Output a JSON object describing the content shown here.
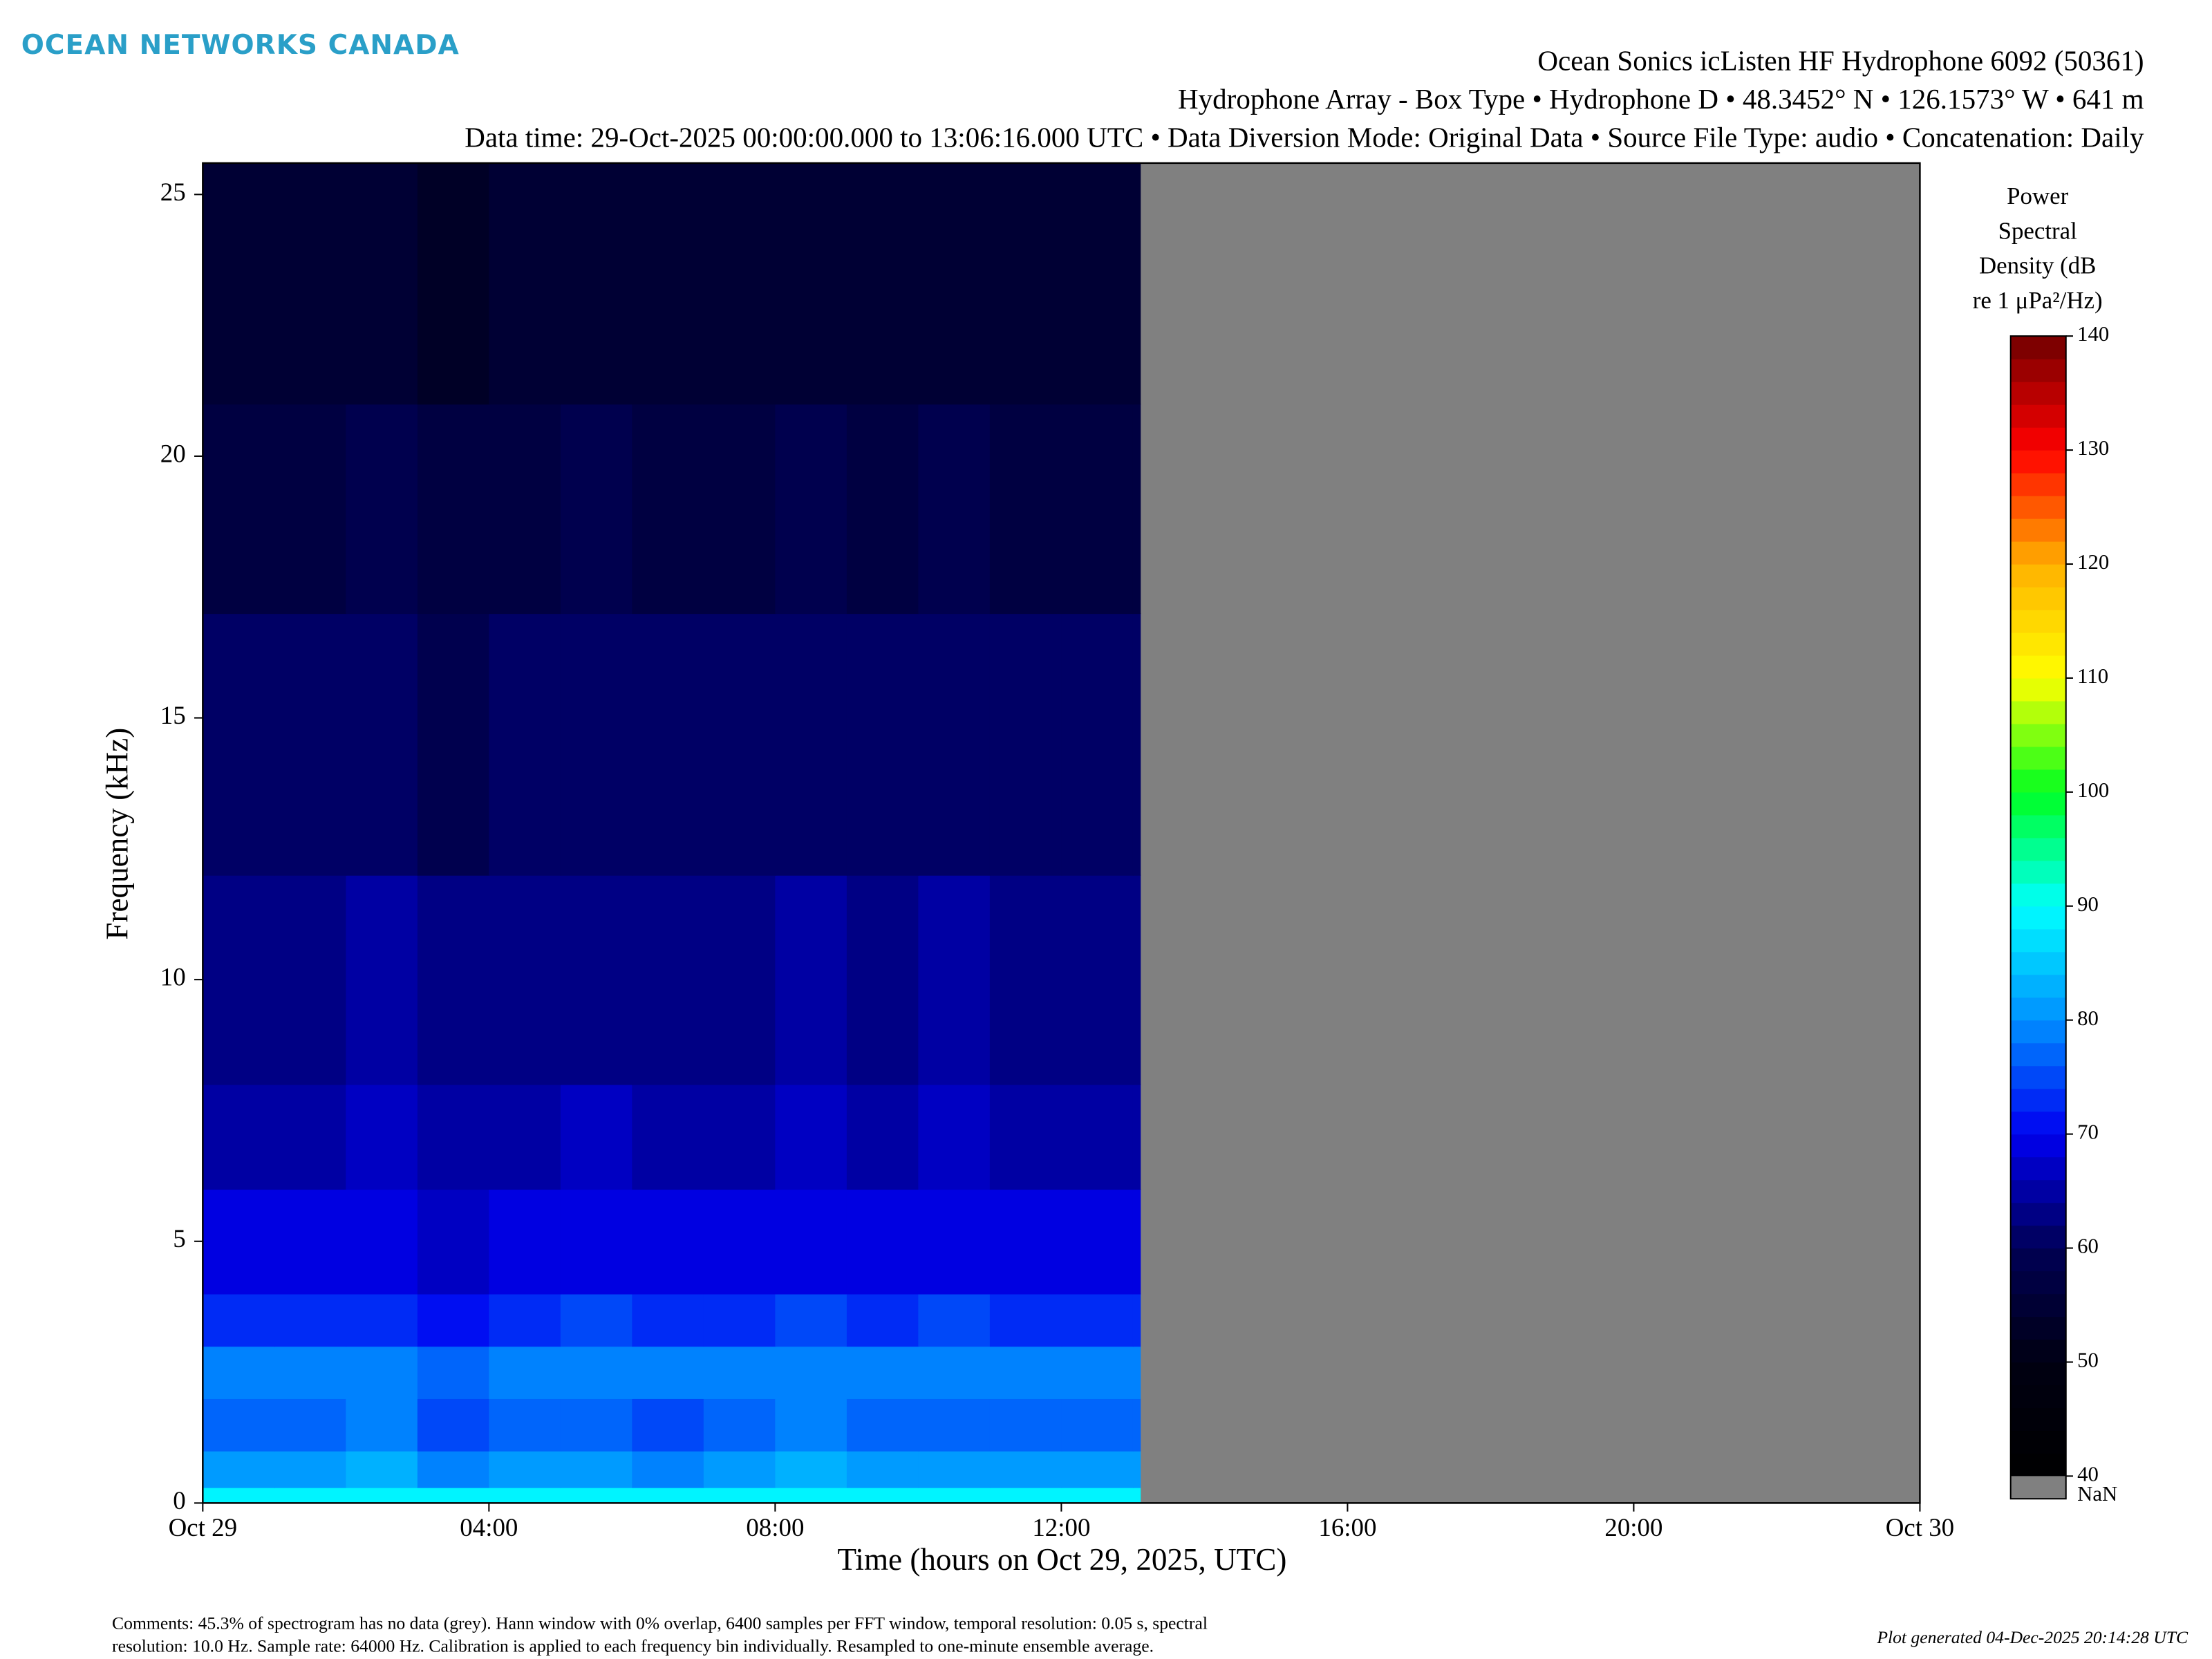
{
  "logo": "OCEAN NETWORKS CANADA",
  "comments": [
    "Comments: 45.3% of spectrogram has no data (grey). Hann window with 0% overlap, 6400 samples per FFT window, temporal resolution: 0.05 s, spectral",
    "resolution: 10.0 Hz. Sample rate: 64000 Hz. Calibration is applied to each frequency bin individually. Resampled to one-minute ensemble average."
  ],
  "generated": "Plot generated 04-Dec-2025 20:14:28 UTC",
  "chart_data": {
    "type": "heatmap",
    "title": [
      "Ocean Sonics icListen HF Hydrophone 6092 (50361)",
      "Hydrophone Array - Box Type • Hydrophone D • 48.3452° N • 126.1573° W • 641 m",
      "Data time: 29-Oct-2025 00:00:00.000 to 13:06:16.000 UTC • Data Diversion Mode: Original Data • Source File Type: audio • Concatenation: Daily"
    ],
    "x_label": "Time (hours on Oct 29, 2025, UTC)",
    "y_label": "Frequency (kHz)",
    "xlim": [
      0,
      24
    ],
    "xticks": [
      {
        "value": 0,
        "label": "Oct 29"
      },
      {
        "value": 4,
        "label": "04:00"
      },
      {
        "value": 8,
        "label": "08:00"
      },
      {
        "value": 12,
        "label": "12:00"
      },
      {
        "value": 16,
        "label": "16:00"
      },
      {
        "value": 20,
        "label": "20:00"
      },
      {
        "value": 24,
        "label": "Oct 30"
      }
    ],
    "ylim": [
      0,
      25.6
    ],
    "yticks": [
      0,
      5,
      10,
      15,
      20,
      25
    ],
    "x_bins": [
      0,
      1,
      2,
      3,
      4,
      5,
      6,
      7,
      8,
      9,
      10,
      11,
      12,
      13,
      13.1
    ],
    "y_bins": [
      0,
      0.3,
      1,
      2,
      3,
      4,
      6,
      8,
      12,
      17,
      21,
      25.6
    ],
    "z": [
      [
        88,
        88,
        89,
        88,
        88,
        89,
        88,
        88,
        89,
        88,
        89,
        89,
        88,
        88
      ],
      [
        80,
        80,
        82,
        79,
        80,
        81,
        79,
        80,
        82,
        80,
        81,
        80,
        80,
        80
      ],
      [
        76,
        76,
        78,
        75,
        76,
        77,
        75,
        76,
        78,
        76,
        77,
        76,
        76,
        76
      ],
      [
        78,
        78,
        79,
        77,
        78,
        79,
        78,
        78,
        79,
        78,
        79,
        78,
        78,
        78
      ],
      [
        72,
        73,
        72,
        71,
        73,
        74,
        72,
        73,
        74,
        72,
        74,
        73,
        72,
        72
      ],
      [
        68,
        68,
        69,
        67,
        68,
        69,
        68,
        68,
        69,
        68,
        69,
        68,
        68,
        68
      ],
      [
        65,
        65,
        66,
        64,
        65,
        66,
        65,
        65,
        66,
        65,
        66,
        65,
        65,
        65
      ],
      [
        63,
        63,
        64,
        62,
        63,
        63,
        63,
        63,
        64,
        63,
        64,
        63,
        63,
        63
      ],
      [
        60,
        60,
        61,
        59,
        60,
        61,
        60,
        60,
        61,
        60,
        61,
        60,
        60,
        60
      ],
      [
        57,
        57,
        58,
        56,
        57,
        58,
        57,
        57,
        58,
        57,
        58,
        57,
        57,
        57
      ],
      [
        54,
        54,
        55,
        53,
        54,
        54,
        54,
        54,
        55,
        54,
        55,
        54,
        54,
        54
      ]
    ],
    "colorbar_label": [
      "Power",
      "Spectral",
      "Density (dB",
      "re 1 μPa²/Hz)"
    ],
    "clim": [
      40,
      140
    ],
    "cticks": [
      40,
      50,
      60,
      70,
      80,
      90,
      100,
      110,
      120,
      130,
      140
    ],
    "colormap": [
      "#000000",
      "#000012",
      "#000055",
      "#0000f0",
      "#0090ff",
      "#00ffff",
      "#00ff20",
      "#ffff00",
      "#ffb000",
      "#ff0000",
      "#700000"
    ],
    "nan_label": "NaN",
    "nan_color": "#808080"
  }
}
